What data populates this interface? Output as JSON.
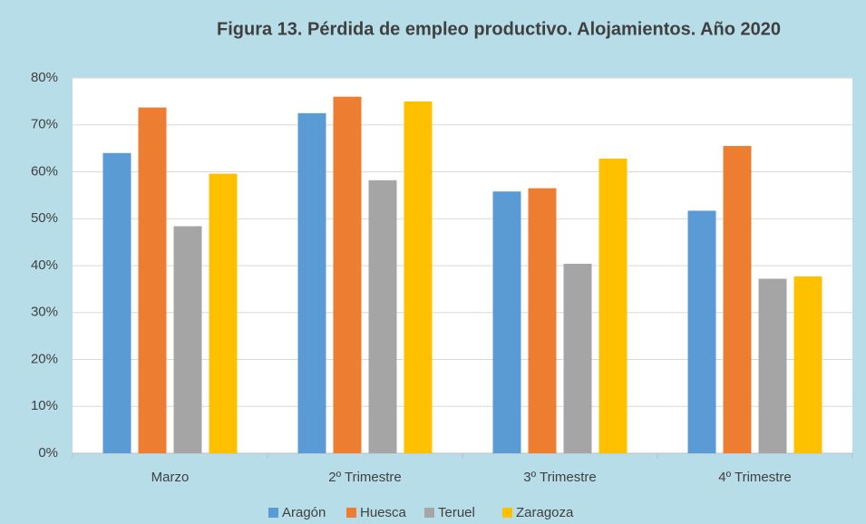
{
  "chart_data": {
    "type": "bar",
    "title": "Figura 13. Pérdida de empleo productivo. Alojamientos. Año 2020",
    "categories": [
      "Marzo",
      "2º Trimestre",
      "3º Trimestre",
      "4º Trimestre"
    ],
    "series": [
      {
        "name": "Aragón",
        "color": "#5b9bd5",
        "values": [
          64,
          72.5,
          55.8,
          51.7
        ]
      },
      {
        "name": "Huesca",
        "color": "#ed7d31",
        "values": [
          73.7,
          76,
          56.5,
          65.5
        ]
      },
      {
        "name": "Teruel",
        "color": "#a5a5a5",
        "values": [
          48.4,
          58.2,
          40.4,
          37.2
        ]
      },
      {
        "name": "Zaragoza",
        "color": "#ffc000",
        "values": [
          59.6,
          75,
          62.8,
          37.7
        ]
      }
    ],
    "ylim": [
      0,
      80
    ],
    "yticks": [
      {
        "value": 0,
        "label": "0%"
      },
      {
        "value": 10,
        "label": "10%"
      },
      {
        "value": 20,
        "label": "20%"
      },
      {
        "value": 30,
        "label": "30%"
      },
      {
        "value": 40,
        "label": "40%"
      },
      {
        "value": 50,
        "label": "50%"
      },
      {
        "value": 60,
        "label": "60%"
      },
      {
        "value": 70,
        "label": "70%"
      },
      {
        "value": 80,
        "label": "80%"
      }
    ],
    "grid": true,
    "legend": "bottom"
  }
}
